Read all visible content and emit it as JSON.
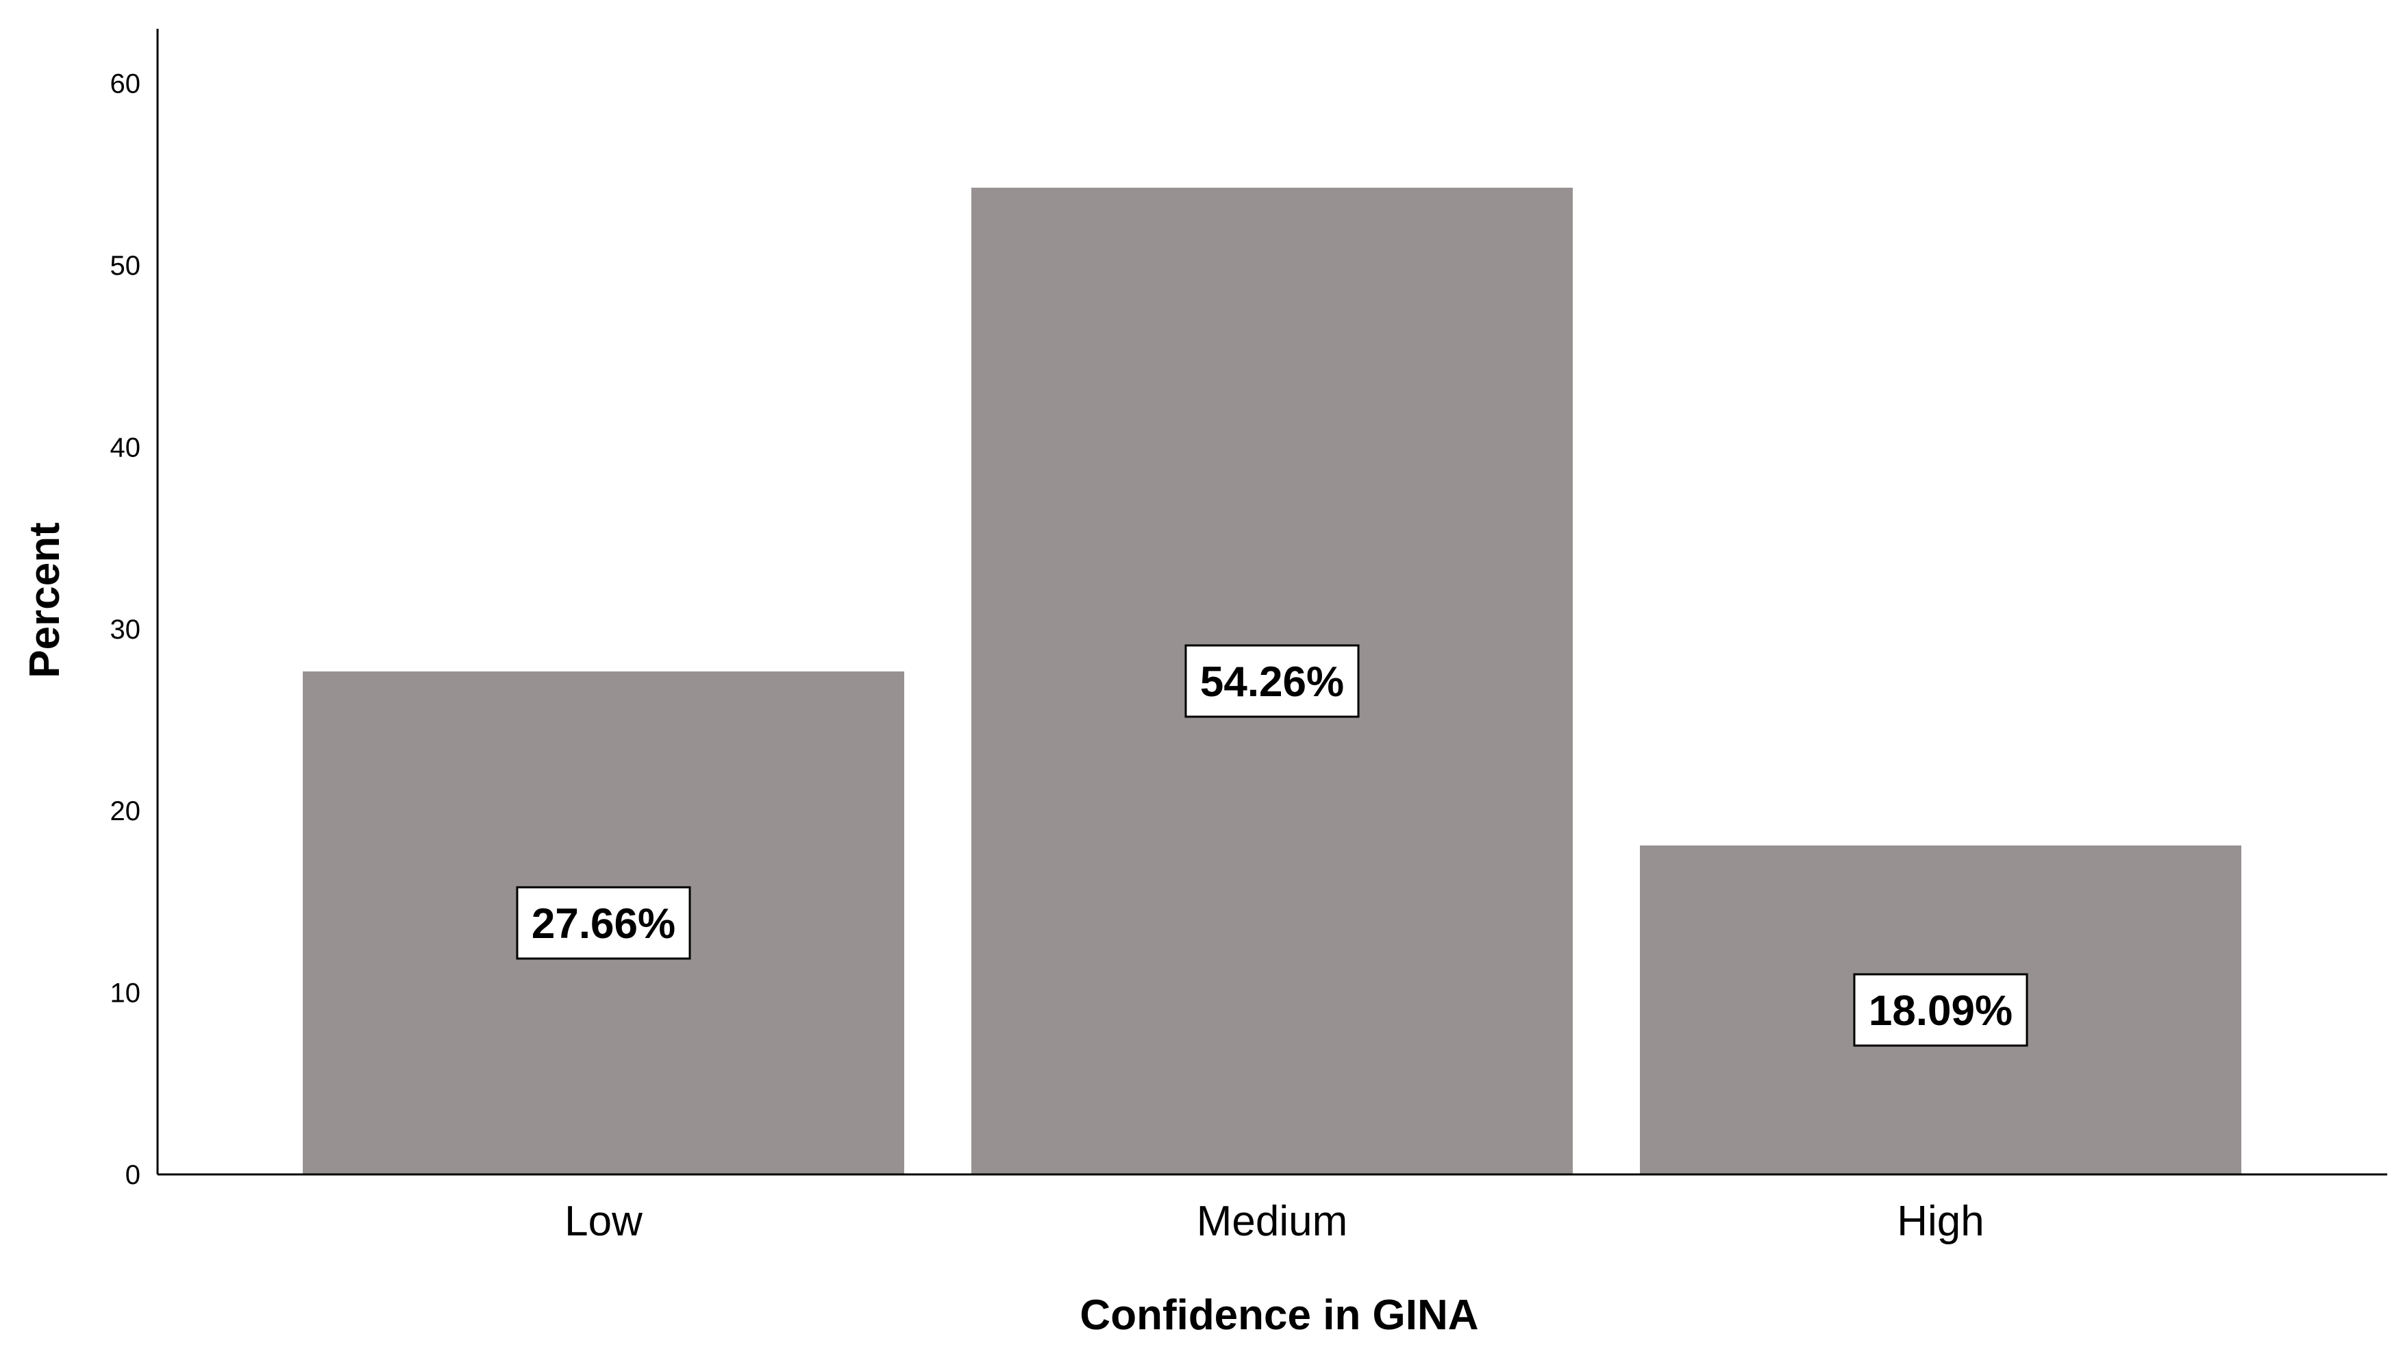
{
  "chart_data": {
    "type": "bar",
    "categories": [
      "Low",
      "Medium",
      "High"
    ],
    "values": [
      27.66,
      54.26,
      18.09
    ],
    "value_labels": [
      "27.66%",
      "54.26%",
      "18.09%"
    ],
    "xlabel": "Confidence in GINA",
    "ylabel": "Percent",
    "ylim": [
      0,
      63
    ],
    "yticks": [
      0,
      10,
      20,
      30,
      40,
      50,
      60
    ],
    "grid": false,
    "legend": "none",
    "colors": {
      "bar": "#979191",
      "axis": "#000000",
      "label_box_fill": "#ffffff",
      "label_box_stroke": "#000000",
      "text": "#000000"
    }
  }
}
